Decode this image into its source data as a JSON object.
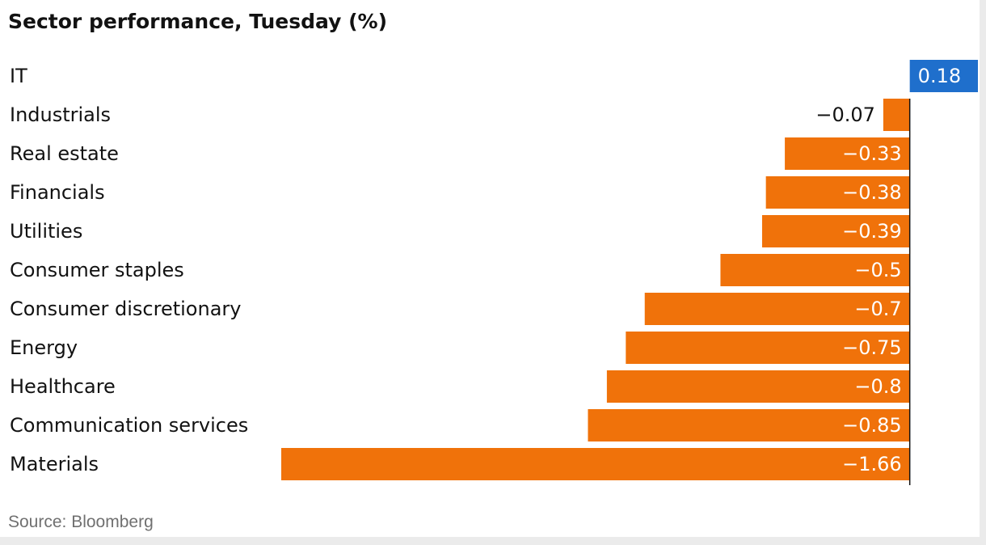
{
  "chart_data": {
    "type": "bar",
    "orientation": "horizontal",
    "title": "Sector performance, Tuesday (%)",
    "categories": [
      "IT",
      "Industrials",
      "Real estate",
      "Financials",
      "Utilities",
      "Consumer staples",
      "Consumer discretionary",
      "Energy",
      "Healthcare",
      "Communication services",
      "Materials"
    ],
    "values": [
      0.18,
      -0.07,
      -0.33,
      -0.38,
      -0.39,
      -0.5,
      -0.7,
      -0.75,
      -0.8,
      -0.85,
      -1.66
    ],
    "value_labels": [
      "0.18",
      "−0.07",
      "−0.33",
      "−0.38",
      "−0.39",
      "−0.5",
      "−0.7",
      "−0.75",
      "−0.8",
      "−0.85",
      "−1.66"
    ],
    "xlim": [
      -1.66,
      0.18
    ],
    "grid": false,
    "legend": "none",
    "colors": {
      "positive": "#1f6fcc",
      "negative": "#f0720a"
    },
    "source": "Source: Bloomberg"
  }
}
